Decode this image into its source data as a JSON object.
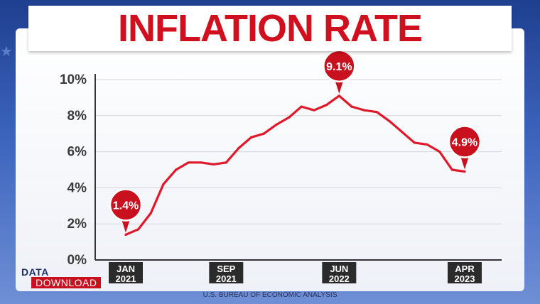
{
  "title": "INFLATION RATE",
  "source": "U.S. BUREAU OF ECONOMIC ANALYSIS",
  "logo": {
    "top": "DATA",
    "bottom": "DOWNLOAD"
  },
  "colors": {
    "accent": "#d0101e",
    "line": "#e0182a",
    "axis": "#333333",
    "grid": "#d2d5dc",
    "tick_box": "#2b2b2b"
  },
  "chart_data": {
    "type": "line",
    "title": "INFLATION RATE",
    "ylim": [
      0,
      10
    ],
    "ytick_labels": [
      "0%",
      "2%",
      "4%",
      "6%",
      "8%",
      "10%"
    ],
    "grid": true,
    "x": [
      "2021-01",
      "2021-02",
      "2021-03",
      "2021-04",
      "2021-05",
      "2021-06",
      "2021-07",
      "2021-08",
      "2021-09",
      "2021-10",
      "2021-11",
      "2021-12",
      "2022-01",
      "2022-02",
      "2022-03",
      "2022-04",
      "2022-05",
      "2022-06",
      "2022-07",
      "2022-08",
      "2022-09",
      "2022-10",
      "2022-11",
      "2022-12",
      "2023-01",
      "2023-02",
      "2023-03",
      "2023-04"
    ],
    "series": [
      {
        "values": [
          1.4,
          1.7,
          2.6,
          4.2,
          5.0,
          5.4,
          5.4,
          5.3,
          5.4,
          6.2,
          6.8,
          7.0,
          7.5,
          7.9,
          8.5,
          8.3,
          8.6,
          9.1,
          8.5,
          8.3,
          8.2,
          7.7,
          7.1,
          6.5,
          6.4,
          6.0,
          5.0,
          4.9
        ]
      }
    ],
    "xtick_labels": [
      {
        "line1": "JAN",
        "line2": "2021",
        "index": 0
      },
      {
        "line1": "SEP",
        "line2": "2021",
        "index": 8
      },
      {
        "line1": "JUN",
        "line2": "2022",
        "index": 17
      },
      {
        "line1": "APR",
        "line2": "2023",
        "index": 27
      }
    ],
    "annotations": [
      {
        "text": "1.4%",
        "index": 0
      },
      {
        "text": "9.1%",
        "index": 17
      },
      {
        "text": "4.9%",
        "index": 27
      }
    ]
  }
}
